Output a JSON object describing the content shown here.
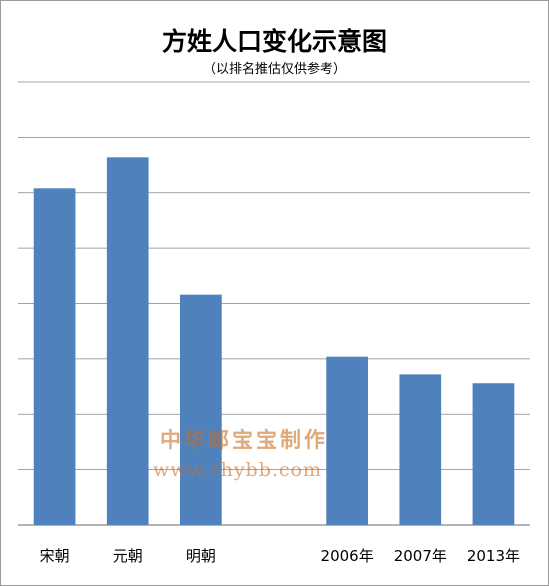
{
  "chart_data": {
    "type": "bar",
    "title": "方姓人口变化示意图",
    "subtitle": "（以排名推估仅供参考）",
    "categories": [
      "宋朝",
      "元朝",
      "明朝",
      "",
      "2006年",
      "2007年",
      "2013年"
    ],
    "values": [
      7.6,
      8.3,
      5.2,
      null,
      3.8,
      3.4,
      3.2
    ],
    "ylim": [
      0,
      10
    ],
    "grid": true,
    "y_tick_labels_shown": false,
    "legend": "none",
    "bar_color": "#4F81BD",
    "grid_color": "#868686"
  },
  "watermark": {
    "line1": "中华邮宝宝制作",
    "line2": "www.zhybb.com"
  }
}
